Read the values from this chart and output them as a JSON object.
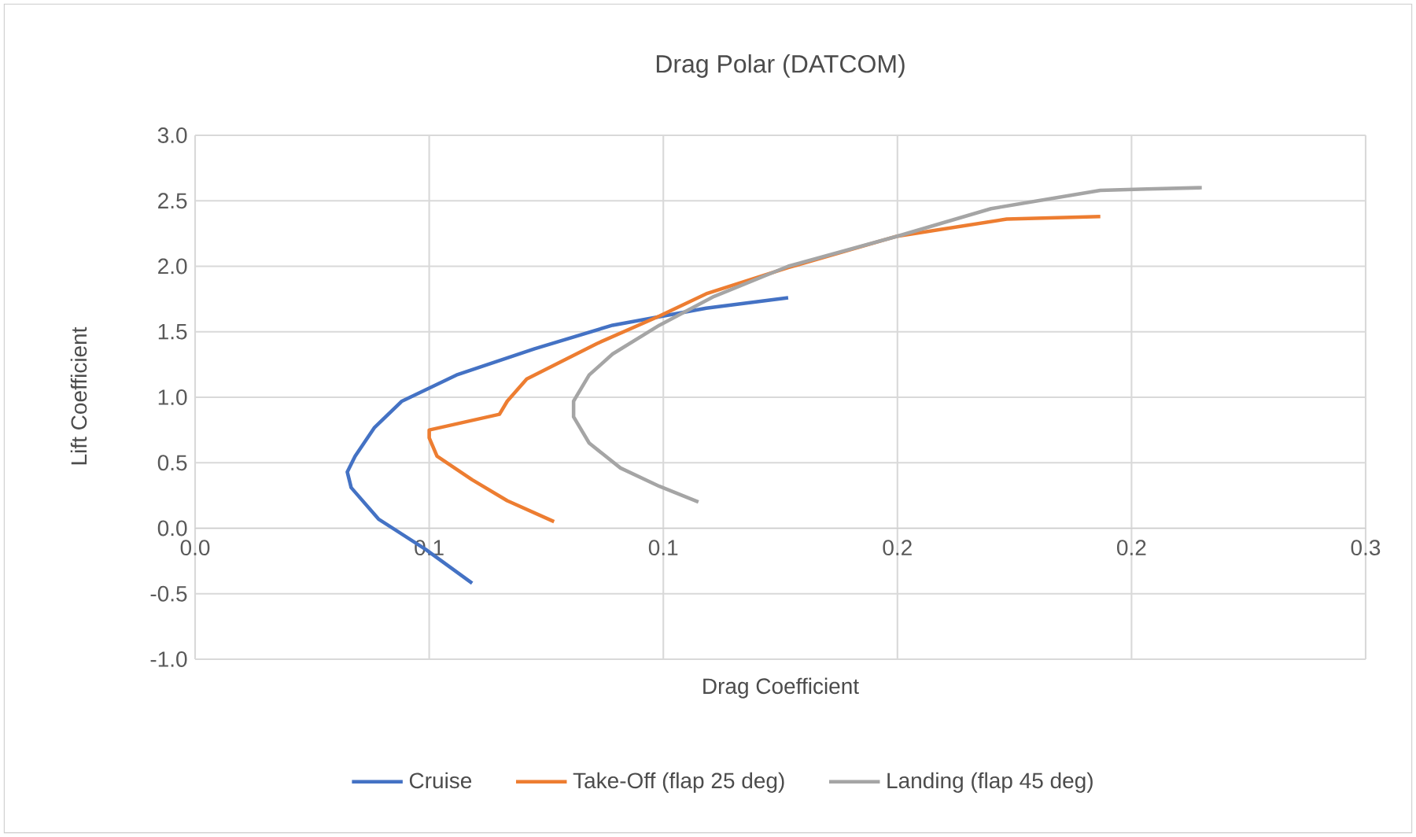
{
  "chart_data": {
    "type": "line",
    "title": "Drag Polar (DATCOM)",
    "xlabel": "Drag Coefficient",
    "ylabel": "Lift Coefficient",
    "xlim": [
      0,
      0.3
    ],
    "xticks": [
      {
        "value": 0,
        "label": "0.0"
      },
      {
        "value": 0.06,
        "label": "0.1"
      },
      {
        "value": 0.12,
        "label": "0.1"
      },
      {
        "value": 0.18,
        "label": "0.2"
      },
      {
        "value": 0.24,
        "label": "0.2"
      },
      {
        "value": 0.3,
        "label": "0.3"
      }
    ],
    "ylim": [
      -1.0,
      3.0
    ],
    "yticks": [
      {
        "value": -1.0,
        "label": "-1.0"
      },
      {
        "value": -0.5,
        "label": "-0.5"
      },
      {
        "value": 0,
        "label": "0.0"
      },
      {
        "value": 0.5,
        "label": "0.5"
      },
      {
        "value": 1.0,
        "label": "1.0"
      },
      {
        "value": 1.5,
        "label": "1.5"
      },
      {
        "value": 2.0,
        "label": "2.0"
      },
      {
        "value": 2.5,
        "label": "2.5"
      },
      {
        "value": 3.0,
        "label": "3.0"
      }
    ],
    "grid": true,
    "legend": "bottom",
    "marker": "none",
    "line_style": "solid",
    "series": [
      {
        "name": "Cruise",
        "color": "#4472c4",
        "x": [
          0.071,
          0.059,
          0.047,
          0.04,
          0.039,
          0.041,
          0.046,
          0.053,
          0.067,
          0.087,
          0.107,
          0.131,
          0.152
        ],
        "values": [
          -0.42,
          -0.16,
          0.07,
          0.31,
          0.43,
          0.55,
          0.77,
          0.97,
          1.17,
          1.37,
          1.55,
          1.68,
          1.76
        ]
      },
      {
        "name": "Take-Off (flap 25 deg)",
        "color": "#ed7d31",
        "x": [
          0.092,
          0.08,
          0.071,
          0.062,
          0.06,
          0.06,
          0.078,
          0.08,
          0.085,
          0.095,
          0.103,
          0.119,
          0.131,
          0.152,
          0.18,
          0.208,
          0.232
        ],
        "values": [
          0.05,
          0.21,
          0.37,
          0.55,
          0.69,
          0.75,
          0.87,
          0.97,
          1.14,
          1.29,
          1.41,
          1.62,
          1.79,
          1.99,
          2.23,
          2.36,
          2.38
        ]
      },
      {
        "name": "Landing (flap 45 deg)",
        "color": "#a5a5a5",
        "x": [
          0.129,
          0.119,
          0.109,
          0.101,
          0.097,
          0.097,
          0.101,
          0.107,
          0.119,
          0.133,
          0.152,
          0.18,
          0.204,
          0.232,
          0.244,
          0.258
        ],
        "values": [
          0.2,
          0.32,
          0.46,
          0.65,
          0.85,
          0.97,
          1.17,
          1.33,
          1.55,
          1.77,
          2.0,
          2.23,
          2.44,
          2.58,
          2.59,
          2.6
        ]
      }
    ]
  }
}
